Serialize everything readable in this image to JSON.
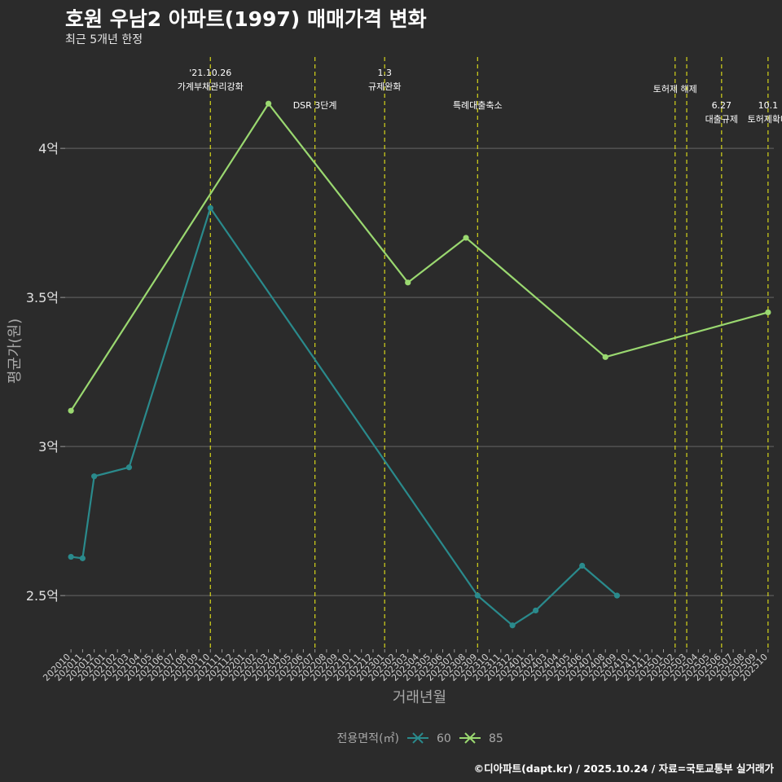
{
  "title": "호원 우남2 아파트(1997) 매매가격 변화",
  "subtitle": "최근 5개년 한정",
  "caption": "©디아파트(dapt.kr) / 2025.10.24 / 자료=국토교통부 실거래가",
  "chart_data": {
    "type": "line",
    "xlabel": "거래년월",
    "ylabel": "평균가(원)",
    "ylim": [
      2.32,
      4.32
    ],
    "yticks": [
      {
        "value": 2.5,
        "label": "2.5억"
      },
      {
        "value": 3.0,
        "label": "3억"
      },
      {
        "value": 3.5,
        "label": "3.5억"
      },
      {
        "value": 4.0,
        "label": "4억"
      }
    ],
    "x_start": "202010",
    "x_end": "202510",
    "x_tick_labels": [
      "202010",
      "202011",
      "202012",
      "202101",
      "202102",
      "202103",
      "202104",
      "202105",
      "202106",
      "202107",
      "202108",
      "202109",
      "202110",
      "202111",
      "202112",
      "202201",
      "202202",
      "202203",
      "202204",
      "202205",
      "202206",
      "202207",
      "202208",
      "202209",
      "202210",
      "202211",
      "202212",
      "202301",
      "202302",
      "202303",
      "202304",
      "202305",
      "202306",
      "202307",
      "202308",
      "202309",
      "202310",
      "202311",
      "202312",
      "202401",
      "202402",
      "202403",
      "202404",
      "202405",
      "202406",
      "202407",
      "202408",
      "202409",
      "202410",
      "202411",
      "202412",
      "202501",
      "202502",
      "202503",
      "202504",
      "202505",
      "202506",
      "202507",
      "202508",
      "202509",
      "202510"
    ],
    "legend_title": "전용면적(㎡)",
    "legend_position": "bottom",
    "series": [
      {
        "name": "60",
        "color": "#2a8a8c",
        "points": [
          [
            "202010",
            2.63
          ],
          [
            "202011",
            2.625
          ],
          [
            "202012",
            2.9
          ],
          [
            "202103",
            2.93
          ],
          [
            "202110",
            3.8
          ],
          [
            "202309",
            2.5
          ],
          [
            "202312",
            2.4
          ],
          [
            "202402",
            2.45
          ],
          [
            "202406",
            2.6
          ],
          [
            "202409",
            2.5
          ]
        ]
      },
      {
        "name": "85",
        "color": "#9ad870",
        "points": [
          [
            "202010",
            3.12
          ],
          [
            "202203",
            4.15
          ],
          [
            "202303",
            3.55
          ],
          [
            "202308",
            3.7
          ],
          [
            "202408",
            3.3
          ],
          [
            "202510",
            3.45
          ]
        ]
      }
    ],
    "events": [
      {
        "x": "202110",
        "lines": [
          "'21.10.26",
          "가계부채관리강화"
        ],
        "level": 0
      },
      {
        "x": "202207",
        "lines": [
          "DSR 3단계"
        ],
        "level": 1
      },
      {
        "x": "202301",
        "lines": [
          "1.3",
          "규제완화"
        ],
        "level": 0
      },
      {
        "x": "202309",
        "lines": [
          "특례대출축소"
        ],
        "level": 1
      },
      {
        "x": "202502",
        "lines": [
          "토허제 해제"
        ],
        "level": 0.5
      },
      {
        "x": "202503",
        "lines": [],
        "level": 0
      },
      {
        "x": "202506",
        "lines": [
          "6.27",
          "대출규제"
        ],
        "level": 1
      },
      {
        "x": "202510",
        "lines": [
          "10.1",
          "토허제확대"
        ],
        "level": 1
      }
    ]
  }
}
